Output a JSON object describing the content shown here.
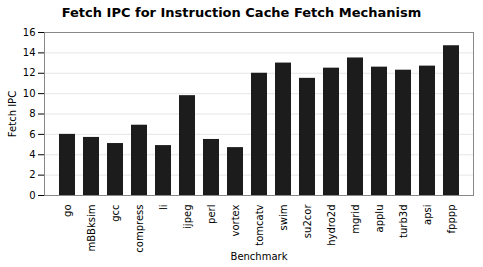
{
  "chart_data": {
    "type": "bar",
    "title": "Fetch IPC for Instruction Cache Fetch Mechanism",
    "xlabel": "Benchmark",
    "ylabel": "Fetch IPC",
    "categories": [
      "go",
      "mBBksim",
      "gcc",
      "compress",
      "li",
      "ijpeg",
      "perl",
      "vortex",
      "tomcatv",
      "swim",
      "su2cor",
      "hydro2d",
      "mgrid",
      "applu",
      "turb3d",
      "apsi",
      "fpppp"
    ],
    "values": [
      6.0,
      5.7,
      5.1,
      6.9,
      4.9,
      9.8,
      5.5,
      4.7,
      12.0,
      13.0,
      11.5,
      12.5,
      13.5,
      12.6,
      12.3,
      12.7,
      14.7
    ],
    "color": "#1c1c1c",
    "ylim": [
      0,
      16
    ],
    "yticks": [
      0,
      2,
      4,
      6,
      8,
      10,
      12,
      14,
      16
    ],
    "grid": true
  }
}
